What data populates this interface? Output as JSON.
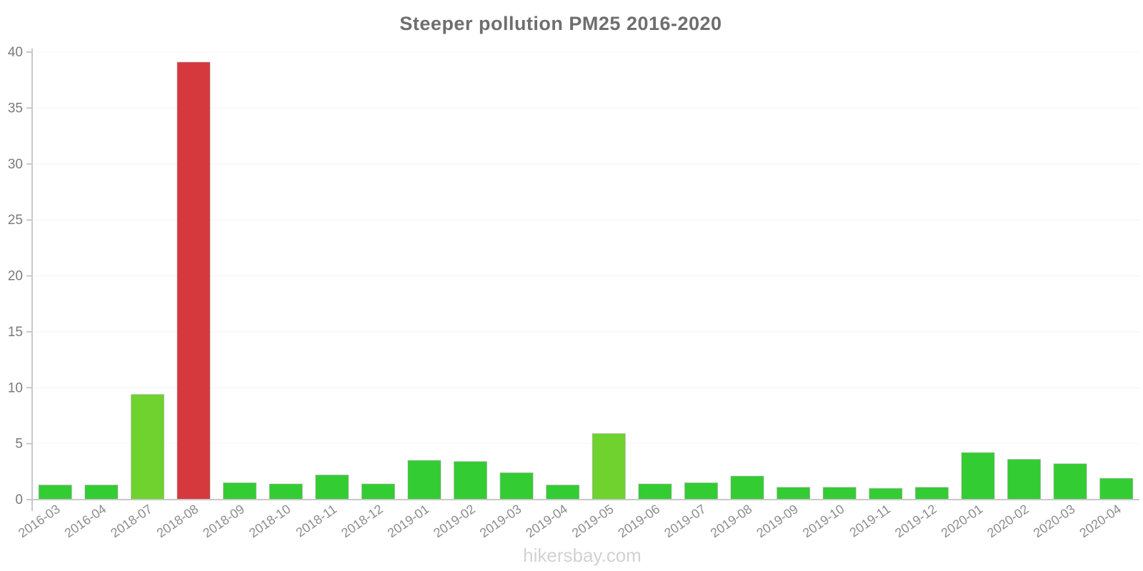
{
  "title": "Steeper pollution PM25 2016-2020",
  "watermark": "hikersbay.com",
  "colors": {
    "bar_green": "#33cc33",
    "bar_light_green": "#6fd22f",
    "bar_red": "#d5393d",
    "axis": "#c8c8c8",
    "grid": "#f4f4f4",
    "title_text": "#6e6e6e",
    "y_label_text": "#7a7a7a",
    "x_label_text": "#8c8c8c",
    "watermark_text": "#d2d2d2"
  },
  "chart_data": {
    "type": "bar",
    "title": "Steeper pollution PM25 2016-2020",
    "xlabel": "",
    "ylabel": "",
    "ylim": [
      0,
      40
    ],
    "yticks": [
      0,
      5,
      10,
      15,
      20,
      25,
      30,
      35,
      40
    ],
    "grid": true,
    "legend_position": "none",
    "categories": [
      "2016-03",
      "2016-04",
      "2018-07",
      "2018-08",
      "2018-09",
      "2018-10",
      "2018-11",
      "2018-12",
      "2019-01",
      "2019-02",
      "2019-03",
      "2019-04",
      "2019-05",
      "2019-06",
      "2019-07",
      "2019-08",
      "2019-09",
      "2019-10",
      "2019-11",
      "2019-12",
      "2020-01",
      "2020-02",
      "2020-03",
      "2020-04"
    ],
    "values": [
      1.3,
      1.3,
      9.4,
      39.1,
      1.5,
      1.4,
      2.2,
      1.4,
      3.5,
      3.4,
      2.4,
      1.3,
      5.9,
      1.4,
      1.5,
      2.1,
      1.1,
      1.1,
      1.0,
      1.1,
      4.2,
      3.6,
      3.2,
      1.9
    ],
    "bar_color_keys": [
      "bar_green",
      "bar_green",
      "bar_light_green",
      "bar_red",
      "bar_green",
      "bar_green",
      "bar_green",
      "bar_green",
      "bar_green",
      "bar_green",
      "bar_green",
      "bar_green",
      "bar_light_green",
      "bar_green",
      "bar_green",
      "bar_green",
      "bar_green",
      "bar_green",
      "bar_green",
      "bar_green",
      "bar_green",
      "bar_green",
      "bar_green",
      "bar_green"
    ]
  }
}
